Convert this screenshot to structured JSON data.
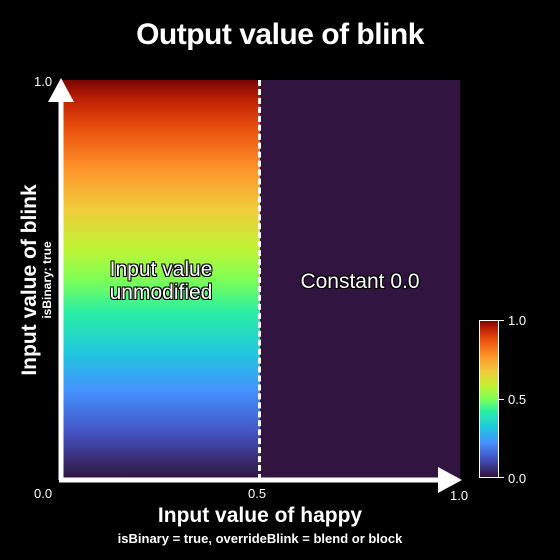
{
  "title": "Output value of blink",
  "x_axis": {
    "label": "Input value of happy",
    "sublabel": "isBinary = true, overrideBlink = blend or block",
    "ticks": [
      "0.0",
      "0.5",
      "1.0"
    ]
  },
  "y_axis": {
    "label": "Input value of blink",
    "sublabel": "isBinary: true",
    "ticks": [
      "1.0"
    ]
  },
  "regions": {
    "left_label_line1": "Input value",
    "left_label_line2": "unmodified",
    "right_label": "Constant 0.0"
  },
  "colorbar": {
    "ticks": [
      "1.0",
      "0.5",
      "0.0"
    ],
    "colormap": "turbo"
  },
  "colors": {
    "constant_region": "#311540",
    "background": "#000000",
    "axes": "#ffffff"
  }
}
